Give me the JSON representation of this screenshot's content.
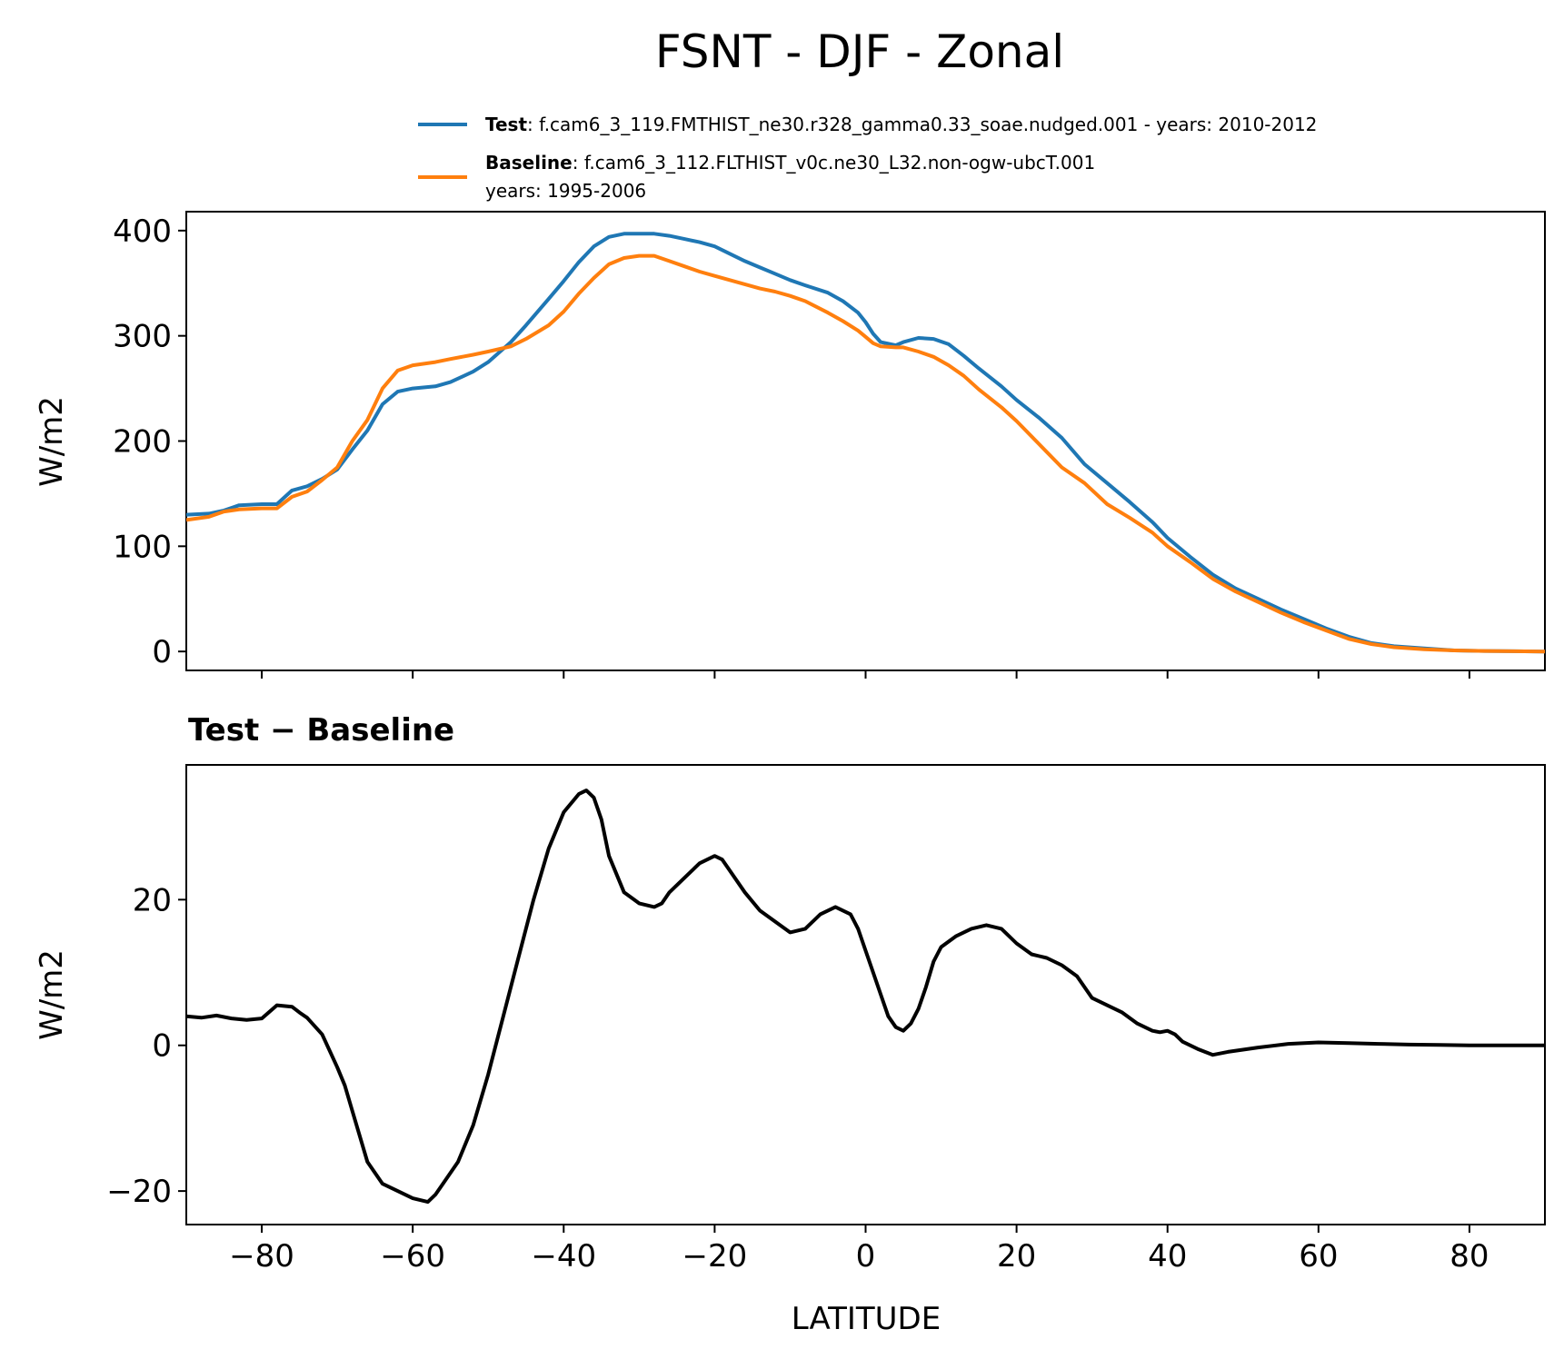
{
  "figure_title": "FSNT - DJF - Zonal",
  "legend": {
    "test": {
      "bold": "Test",
      "text": ": f.cam6_3_119.FMTHIST_ne30.r328_gamma0.33_soae.nudged.001 - years: 2010-2012",
      "color": "#1f77b4"
    },
    "baseline": {
      "bold": "Baseline",
      "text": ": f.cam6_3_112.FLTHIST_v0c.ne30_L32.non-ogw-ubcT.001",
      "text2": "years: 1995-2006",
      "color": "#ff7f0e"
    }
  },
  "diff_title": "Test − Baseline",
  "chart_data": [
    {
      "type": "line",
      "title": "",
      "xlabel": "",
      "ylabel": "W/m2",
      "xlim": [
        -90,
        90
      ],
      "ylim": [
        -18,
        418
      ],
      "yticks": [
        0,
        100,
        200,
        300,
        400
      ],
      "xticks": [
        -80,
        -60,
        -40,
        -20,
        0,
        20,
        40,
        60,
        80
      ],
      "series": [
        {
          "name": "Test",
          "color": "#1f77b4",
          "x": [
            -90,
            -87,
            -85,
            -83,
            -80,
            -78,
            -76,
            -74,
            -72,
            -70,
            -68,
            -66,
            -64,
            -62,
            -60,
            -57,
            -55,
            -52,
            -50,
            -47,
            -45,
            -42,
            -40,
            -38,
            -36,
            -34,
            -32,
            -30,
            -28,
            -26,
            -24,
            -22,
            -20,
            -18,
            -16,
            -14,
            -12,
            -10,
            -8,
            -5,
            -3,
            -1,
            0,
            1,
            2,
            4,
            5,
            7,
            9,
            11,
            13,
            15,
            18,
            20,
            23,
            26,
            29,
            32,
            35,
            38,
            40,
            43,
            46,
            49,
            52,
            55,
            58,
            61,
            64,
            67,
            70,
            74,
            78,
            82,
            86,
            90
          ],
          "values": [
            130,
            131,
            134,
            139,
            140,
            140,
            153,
            157,
            164,
            173,
            192,
            210,
            235,
            247,
            250,
            252,
            256,
            266,
            275,
            294,
            310,
            335,
            352,
            370,
            385,
            394,
            397,
            397,
            397,
            395,
            392,
            389,
            385,
            378,
            371,
            365,
            359,
            353,
            348,
            341,
            333,
            322,
            313,
            302,
            294,
            291,
            294,
            298,
            297,
            292,
            281,
            269,
            252,
            239,
            222,
            203,
            178,
            160,
            142,
            123,
            108,
            90,
            73,
            60,
            50,
            40,
            31,
            22,
            14,
            8,
            5,
            3,
            1,
            0.5,
            0.2,
            0
          ]
        },
        {
          "name": "Baseline",
          "color": "#ff7f0e",
          "x": [
            -90,
            -87,
            -85,
            -83,
            -80,
            -78,
            -76,
            -74,
            -72,
            -70,
            -68,
            -66,
            -64,
            -62,
            -60,
            -57,
            -55,
            -52,
            -50,
            -47,
            -45,
            -42,
            -40,
            -38,
            -36,
            -34,
            -32,
            -30,
            -28,
            -26,
            -24,
            -22,
            -20,
            -18,
            -16,
            -14,
            -12,
            -10,
            -8,
            -5,
            -3,
            -1,
            0,
            1,
            2,
            4,
            5,
            7,
            9,
            11,
            13,
            15,
            18,
            20,
            23,
            26,
            29,
            32,
            35,
            38,
            40,
            43,
            46,
            49,
            52,
            55,
            58,
            61,
            64,
            67,
            70,
            74,
            78,
            82,
            86,
            90
          ],
          "values": [
            125,
            128,
            133,
            135,
            136,
            136,
            147,
            152,
            163,
            175,
            200,
            220,
            250,
            267,
            272,
            275,
            278,
            282,
            285,
            290,
            297,
            310,
            323,
            340,
            355,
            368,
            374,
            376,
            376,
            371,
            366,
            361,
            357,
            353,
            349,
            345,
            342,
            338,
            333,
            322,
            314,
            305,
            299,
            293,
            290,
            289,
            289,
            285,
            280,
            272,
            262,
            249,
            232,
            219,
            197,
            175,
            160,
            140,
            127,
            113,
            100,
            85,
            69,
            57,
            47,
            37,
            28,
            20,
            12,
            7,
            4,
            2,
            1,
            0.5,
            0.2,
            0
          ]
        }
      ]
    },
    {
      "type": "line",
      "title": "Test − Baseline",
      "xlabel": "LATITUDE",
      "ylabel": "W/m2",
      "xlim": [
        -90,
        90
      ],
      "ylim": [
        -24.6,
        38.5
      ],
      "yticks": [
        -20,
        0,
        20
      ],
      "xticks": [
        -80,
        -60,
        -40,
        -20,
        0,
        20,
        40,
        60,
        80
      ],
      "series": [
        {
          "name": "Test - Baseline",
          "color": "#000000",
          "x": [
            -90,
            -88,
            -86,
            -84,
            -82,
            -80,
            -78,
            -76,
            -75,
            -74,
            -72,
            -70,
            -69,
            -68,
            -66,
            -64,
            -62,
            -60,
            -58,
            -57,
            -56,
            -54,
            -52,
            -50,
            -48,
            -46,
            -44,
            -42,
            -40,
            -38,
            -37,
            -36,
            -35,
            -34,
            -32,
            -30,
            -28,
            -27,
            -26,
            -24,
            -22,
            -20,
            -19,
            -18,
            -16,
            -14,
            -12,
            -10,
            -8,
            -6,
            -4,
            -3,
            -2,
            -1,
            0,
            1,
            2,
            3,
            4,
            5,
            6,
            7,
            8,
            9,
            10,
            12,
            14,
            16,
            18,
            20,
            22,
            24,
            26,
            28,
            30,
            32,
            34,
            36,
            38,
            39,
            40,
            41,
            42,
            44,
            46,
            48,
            52,
            56,
            60,
            64,
            68,
            72,
            76,
            80,
            84,
            90
          ],
          "values": [
            4,
            3.8,
            4.1,
            3.7,
            3.5,
            3.7,
            5.5,
            5.3,
            4.5,
            3.8,
            1.5,
            -3,
            -5.5,
            -9,
            -16,
            -19,
            -20,
            -21,
            -21.5,
            -20.5,
            -19,
            -16,
            -11,
            -4,
            4,
            12,
            20,
            27,
            32,
            34.5,
            35,
            34,
            31,
            26,
            21,
            19.5,
            19,
            19.5,
            21,
            23,
            25,
            26,
            25.5,
            24,
            21,
            18.5,
            17,
            15.5,
            16,
            18,
            19,
            18.5,
            18,
            16,
            13,
            10,
            7,
            4,
            2.5,
            2,
            3,
            5,
            8,
            11.5,
            13.5,
            15,
            16,
            16.5,
            16,
            14,
            12.5,
            12,
            11,
            9.5,
            6.5,
            5.5,
            4.5,
            3,
            2,
            1.8,
            2,
            1.5,
            0.5,
            -0.5,
            -1.3,
            -0.9,
            -0.3,
            0.2,
            0.4,
            0.3,
            0.2,
            0.1,
            0.05,
            0,
            0,
            0
          ]
        }
      ]
    }
  ]
}
